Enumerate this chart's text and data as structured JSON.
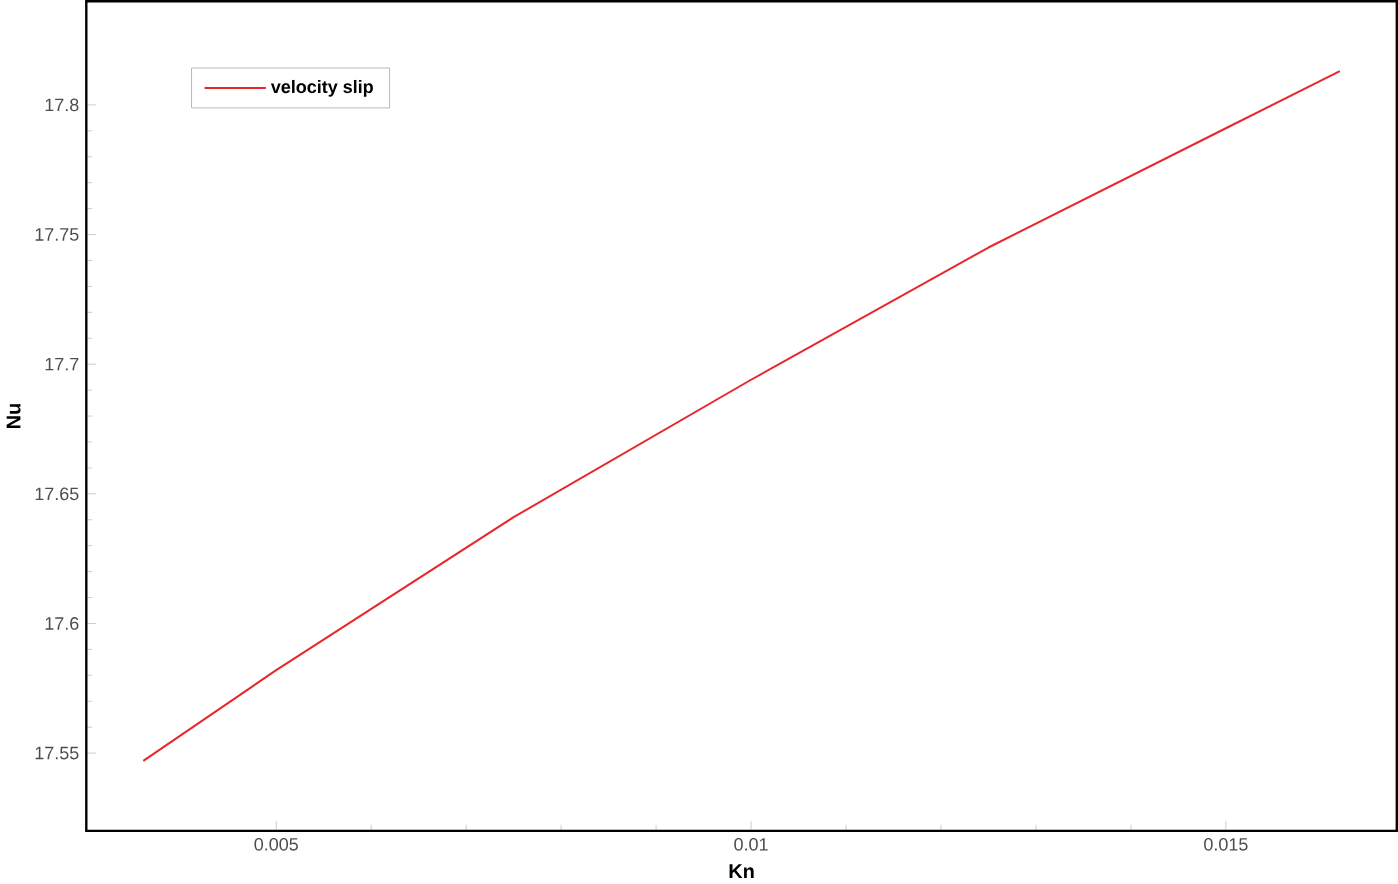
{
  "chart_data": {
    "type": "line",
    "xlabel": "Kn",
    "ylabel": "Nu",
    "x": [
      0.0036,
      0.005,
      0.0075,
      0.01,
      0.0125,
      0.015,
      0.0162
    ],
    "series": [
      {
        "name": "velocity slip",
        "color": "#e8262b",
        "values": [
          17.547,
          17.582,
          17.641,
          17.694,
          17.745,
          17.791,
          17.813
        ]
      }
    ],
    "xlim": [
      0.003,
      0.0168
    ],
    "ylim": [
      17.52,
      17.84
    ],
    "xticks": [
      0.005,
      0.01,
      0.015
    ],
    "yticks": [
      17.55,
      17.6,
      17.65,
      17.7,
      17.75,
      17.8
    ],
    "legend": "top left",
    "grid": false,
    "marker": "none",
    "line_style": "solid"
  }
}
